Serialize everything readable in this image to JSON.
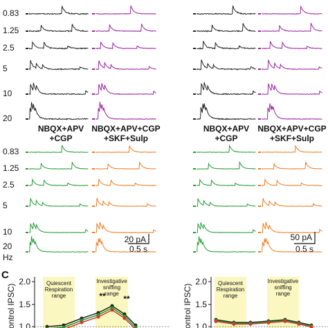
{
  "panel_c": {
    "label": "C"
  },
  "top_block": {
    "rows": [
      "0.83",
      "1.25",
      "2.5",
      "5",
      "10",
      "20"
    ]
  },
  "bottom_block": {
    "rows": [
      "0.83",
      "1.25",
      "2.5",
      "5",
      "10",
      "20"
    ],
    "unit": "Hz"
  },
  "headings": [
    {
      "line1": "NBQX+APV",
      "line2": "+CGP"
    },
    {
      "line1": "NBQX+APV+CGP",
      "line2": "+SKF+Sulp"
    },
    {
      "line1": "NBQX+APV",
      "line2": "+CGP"
    },
    {
      "line1": "NBQX+APV+CGP",
      "line2": "+SKF+Sulp"
    }
  ],
  "scale_bars": [
    {
      "amplitude": "20 pA",
      "time": "0.5 s"
    },
    {
      "amplitude": "50 pA",
      "time": "0.5 s"
    }
  ],
  "graphs": [
    {
      "yticks": [
        "2.0",
        "1.5",
        "1.0"
      ],
      "ylabel": "ontrol IPSC)",
      "quiescent": "Quiescent",
      "quiescent2": "Respiration",
      "quiescent3": "range",
      "sniff1": "Investigative",
      "sniff2": "sniffing",
      "sniff3": "range",
      "stars": [
        "**",
        "**"
      ]
    },
    {
      "yticks": [
        "2.0",
        "1.5",
        "1.0"
      ],
      "ylabel": "ontrol IPSC)",
      "quiescent": "Quiescent",
      "quiescent2": "Respiration",
      "quiescent3": "range",
      "sniff1": "Investigative",
      "sniff2": "sniffing",
      "sniff3": "range"
    }
  ]
}
